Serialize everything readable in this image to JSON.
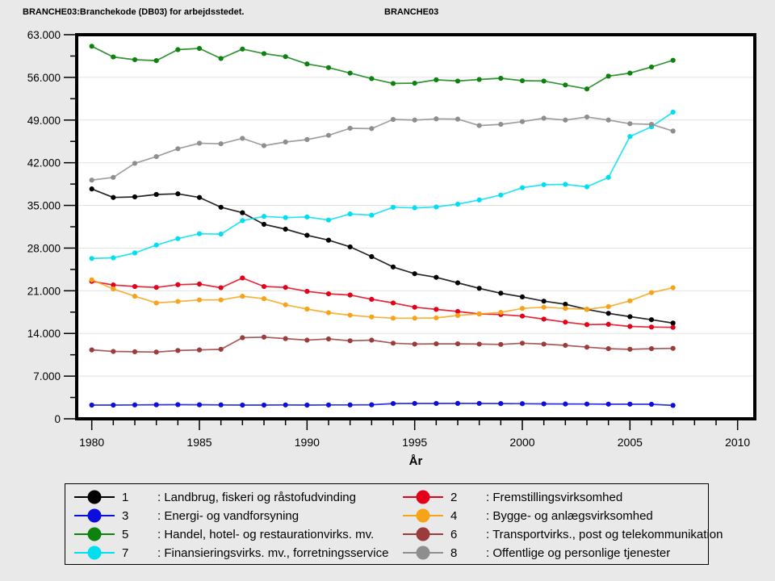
{
  "header": {
    "left_title": "BRANCHE03:Branchekode (DB03) for arbejdsstedet.",
    "right_title": "BRANCHE03"
  },
  "chart_data": {
    "type": "line",
    "xlabel": "År",
    "x": [
      1980,
      1981,
      1982,
      1983,
      1984,
      1985,
      1986,
      1987,
      1988,
      1989,
      1990,
      1991,
      1992,
      1993,
      1994,
      1995,
      1996,
      1997,
      1998,
      1999,
      2000,
      2001,
      2002,
      2003,
      2004,
      2005,
      2006,
      2007
    ],
    "xlim": [
      1979.3,
      2010.8
    ],
    "ylim": [
      0,
      63000
    ],
    "x_major_ticks": [
      {
        "value": 1980,
        "label": "1980"
      },
      {
        "value": 1985,
        "label": "1985"
      },
      {
        "value": 1990,
        "label": "1990"
      },
      {
        "value": 1995,
        "label": "1995"
      },
      {
        "value": 2000,
        "label": "2000"
      },
      {
        "value": 2005,
        "label": "2005"
      },
      {
        "value": 2010,
        "label": "2010"
      }
    ],
    "x_minor_step": 1,
    "y_major_ticks": [
      {
        "value": 0,
        "label": "0"
      },
      {
        "value": 7000,
        "label": "7.000"
      },
      {
        "value": 14000,
        "label": "14.000"
      },
      {
        "value": 21000,
        "label": "21.000"
      },
      {
        "value": 28000,
        "label": "28.000"
      },
      {
        "value": 35000,
        "label": "35.000"
      },
      {
        "value": 42000,
        "label": "42.000"
      },
      {
        "value": 49000,
        "label": "49.000"
      },
      {
        "value": 56000,
        "label": "56.000"
      },
      {
        "value": 63000,
        "label": "63.000"
      }
    ],
    "y_minor_step": 3500,
    "grid": "horizontal-major",
    "legend_position": "bottom-box-2-columns",
    "plot_bg": "#ffffff",
    "grid_color": "#e2e2e2",
    "series": [
      {
        "id": "1",
        "name": "Landbrug, fiskeri og råstofudvinding",
        "legend_label": ": Landbrug, fiskeri og råstofudvinding",
        "color": "#000000",
        "values": [
          37700,
          36300,
          36400,
          36800,
          36900,
          36300,
          34700,
          33800,
          31900,
          31100,
          30100,
          29300,
          28200,
          26600,
          24900,
          23800,
          23200,
          22300,
          21400,
          20600,
          20000,
          19300,
          18800,
          17950,
          17300,
          16750,
          16250,
          15700
        ]
      },
      {
        "id": "2",
        "name": "Fremstillingsvirksomhed",
        "legend_label": ": Fremstillingsvirksomhed",
        "color": "#e30019",
        "values": [
          22550,
          21950,
          21700,
          21550,
          22000,
          22100,
          21500,
          23100,
          21700,
          21550,
          20900,
          20500,
          20300,
          19600,
          19000,
          18300,
          17950,
          17600,
          17200,
          17100,
          16850,
          16350,
          15850,
          15450,
          15500,
          15150,
          15050,
          15000
        ]
      },
      {
        "id": "3",
        "name": "Energi- og vandforsyning",
        "legend_label": ": Energi- og vandforsyning",
        "color": "#0d0de0",
        "values": [
          2250,
          2250,
          2280,
          2300,
          2320,
          2300,
          2280,
          2250,
          2250,
          2270,
          2250,
          2270,
          2280,
          2300,
          2500,
          2520,
          2520,
          2530,
          2520,
          2500,
          2480,
          2450,
          2430,
          2420,
          2400,
          2400,
          2380,
          2200
        ]
      },
      {
        "id": "4",
        "name": "Bygge- og anlægsvirksomhed",
        "legend_label": ": Bygge- og anlægsvirksomhed",
        "color": "#f7a318",
        "values": [
          22800,
          21300,
          20100,
          19000,
          19250,
          19500,
          19500,
          20100,
          19700,
          18700,
          18000,
          17400,
          17000,
          16700,
          16500,
          16500,
          16550,
          16950,
          17200,
          17450,
          18100,
          18300,
          18100,
          17950,
          18400,
          19350,
          20700,
          21500
        ]
      },
      {
        "id": "5",
        "name": "Handel, hotel- og restaurationvirks. mv.",
        "legend_label": ": Handel, hotel- og restaurationvirks. mv.",
        "color": "#0e820e",
        "values": [
          61100,
          59350,
          58900,
          58750,
          60550,
          60750,
          59100,
          60650,
          59900,
          59400,
          58200,
          57600,
          56700,
          55800,
          55000,
          55050,
          55600,
          55400,
          55650,
          55850,
          55450,
          55400,
          54750,
          54100,
          56200,
          56700,
          57700,
          58800
        ]
      },
      {
        "id": "6",
        "name": "Transportvirks., post og telekommunikation",
        "legend_label": ": Transportvirks., post og telekommunikation",
        "color": "#9a3c3c",
        "values": [
          11300,
          11050,
          11000,
          10950,
          11200,
          11300,
          11400,
          13300,
          13400,
          13150,
          12900,
          13100,
          12800,
          12900,
          12400,
          12250,
          12300,
          12300,
          12250,
          12200,
          12400,
          12250,
          12050,
          11750,
          11500,
          11400,
          11500,
          11550
        ]
      },
      {
        "id": "7",
        "name": "Finansieringsvirks. mv., forretningsservice",
        "legend_label": ": Finansieringsvirks. mv., forretningsservice",
        "color": "#00dff2",
        "values": [
          26300,
          26400,
          27200,
          28500,
          29550,
          30350,
          30300,
          32500,
          33200,
          33000,
          33100,
          32600,
          33600,
          33400,
          34700,
          34600,
          34750,
          35200,
          35900,
          36700,
          37900,
          38400,
          38450,
          38050,
          39600,
          46300,
          47900,
          50300
        ]
      },
      {
        "id": "8",
        "name": "Offentlige og personlige tjenester",
        "legend_label": ": Offentlige og personlige tjenester",
        "color": "#8e8e8e",
        "values": [
          39150,
          39600,
          41900,
          43000,
          44300,
          45200,
          45100,
          46000,
          44800,
          45400,
          45800,
          46500,
          47650,
          47600,
          49100,
          49000,
          49200,
          49150,
          48100,
          48300,
          48750,
          49300,
          49000,
          49500,
          49000,
          48400,
          48300,
          47200
        ]
      }
    ]
  }
}
